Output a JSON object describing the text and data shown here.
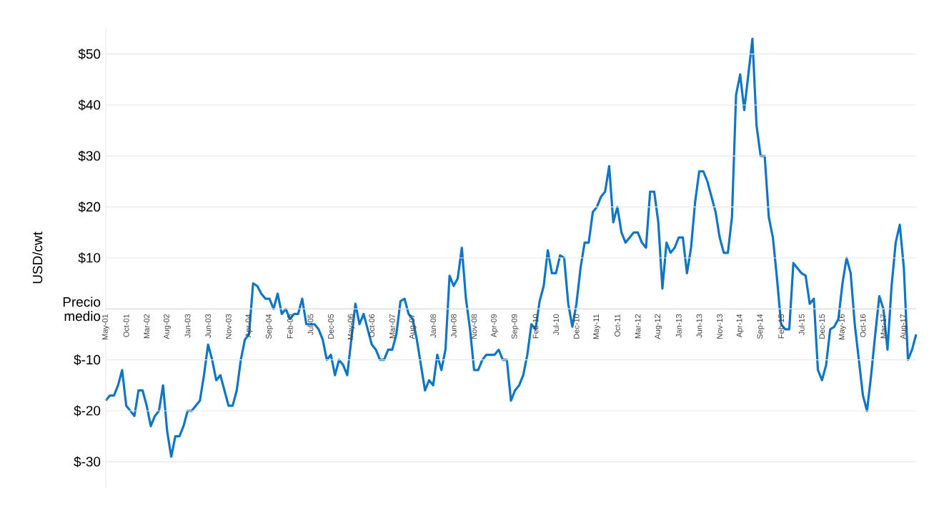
{
  "chart_data": {
    "type": "line",
    "ylabel": "USD/cwt",
    "color": "#0f75c5",
    "grid": "y",
    "ylim": [
      -35,
      55
    ],
    "yticks": [
      {
        "value": -30,
        "label": "$-30"
      },
      {
        "value": -20,
        "label": "$-20"
      },
      {
        "value": -10,
        "label": "$-10"
      },
      {
        "value": 0,
        "label": "Precio medio"
      },
      {
        "value": 10,
        "label": "$10"
      },
      {
        "value": 20,
        "label": "$20"
      },
      {
        "value": 30,
        "label": "$30"
      },
      {
        "value": 40,
        "label": "$40"
      },
      {
        "value": 50,
        "label": "$50"
      }
    ],
    "categories": [
      "May-01",
      null,
      null,
      null,
      null,
      "Oct-01",
      null,
      null,
      null,
      null,
      "Mar-02",
      null,
      null,
      null,
      null,
      "Aug-02",
      null,
      null,
      null,
      null,
      "Jan-03",
      null,
      null,
      null,
      null,
      "Jun-03",
      null,
      null,
      null,
      null,
      "Nov-03",
      null,
      null,
      null,
      null,
      "Apr-04",
      null,
      null,
      null,
      null,
      "Sep-04",
      null,
      null,
      null,
      null,
      "Feb-05",
      null,
      null,
      null,
      null,
      "Jul-05",
      null,
      null,
      null,
      null,
      "Dec-05",
      null,
      null,
      null,
      null,
      "May-06",
      null,
      null,
      null,
      null,
      "Oct-06",
      null,
      null,
      null,
      null,
      "Mar-07",
      null,
      null,
      null,
      null,
      "Aug-07",
      null,
      null,
      null,
      null,
      "Jan-08",
      null,
      null,
      null,
      null,
      "Jun-08",
      null,
      null,
      null,
      null,
      "Nov-08",
      null,
      null,
      null,
      null,
      "Apr-09",
      null,
      null,
      null,
      null,
      "Sep-09",
      null,
      null,
      null,
      null,
      "Feb-10",
      null,
      null,
      null,
      null,
      "Jul-10",
      null,
      null,
      null,
      null,
      "Dec-10",
      null,
      null,
      null,
      null,
      "May-11",
      null,
      null,
      null,
      null,
      "Oct-11",
      null,
      null,
      null,
      null,
      "Mar-12",
      null,
      null,
      null,
      null,
      "Aug-12",
      null,
      null,
      null,
      null,
      "Jan-13",
      null,
      null,
      null,
      null,
      "Jun-13",
      null,
      null,
      null,
      null,
      "Nov-13",
      null,
      null,
      null,
      null,
      "Apr-14",
      null,
      null,
      null,
      null,
      "Sep-14",
      null,
      null,
      null,
      null,
      "Feb-15",
      null,
      null,
      null,
      null,
      "Jul-15",
      null,
      null,
      null,
      null,
      "Dec-15",
      null,
      null,
      null,
      null,
      "May-16",
      null,
      null,
      null,
      null,
      "Oct-16",
      null,
      null,
      null,
      null,
      "Mar-17",
      null,
      null,
      null,
      null,
      "Aug-17",
      null,
      null,
      null
    ],
    "values": [
      -18,
      -17,
      -17,
      -15,
      -12,
      -19,
      -20,
      -21,
      -16,
      -16,
      -19,
      -23,
      -21,
      -20,
      -15,
      -24,
      -29,
      -25,
      -25,
      -23,
      -20,
      -20,
      -19,
      -18,
      -13,
      -7,
      -10,
      -14,
      -13,
      -16,
      -19,
      -19,
      -16,
      -10,
      -6,
      -5,
      5,
      4.5,
      3,
      2,
      2,
      0,
      3,
      -1,
      0,
      -2,
      -1,
      -1,
      2,
      -3,
      -3,
      -3,
      -4,
      -6,
      -10,
      -9,
      -13,
      -10,
      -11,
      -13,
      -6,
      1,
      -3,
      -1,
      -4,
      -7,
      -8,
      -10,
      -10,
      -8,
      -8,
      -5,
      1.5,
      2,
      -1,
      -2,
      -6,
      -11,
      -16,
      -14,
      -15,
      -9,
      -12,
      -8,
      6.5,
      4.5,
      6,
      12,
      2,
      -4,
      -12,
      -12,
      -10,
      -9,
      -9,
      -9,
      -8,
      -10,
      -10,
      -18,
      -16,
      -15,
      -13,
      -9,
      -3,
      -4,
      1.5,
      4.5,
      11.5,
      7,
      7,
      10.5,
      10,
      1,
      -3.5,
      1,
      8,
      13,
      13,
      19,
      20,
      22,
      23,
      28,
      17,
      20,
      15,
      13,
      14,
      15,
      15,
      13,
      12,
      23,
      23,
      17,
      4,
      13,
      11,
      12,
      14,
      14,
      7,
      12,
      21,
      27,
      27,
      25,
      22,
      19,
      14,
      11,
      11,
      18,
      42,
      46,
      39,
      46,
      53,
      36,
      30,
      30,
      18,
      14,
      6,
      -3,
      -4,
      -4,
      9,
      8,
      7,
      6.5,
      1,
      2,
      -12,
      -14,
      -11,
      -4,
      -3.5,
      -2,
      5,
      10,
      7,
      -3,
      -10,
      -17,
      -20,
      -13,
      -5,
      2.5,
      0,
      -8,
      4.5,
      13,
      16.5,
      8,
      -10,
      -8,
      -5
    ]
  }
}
